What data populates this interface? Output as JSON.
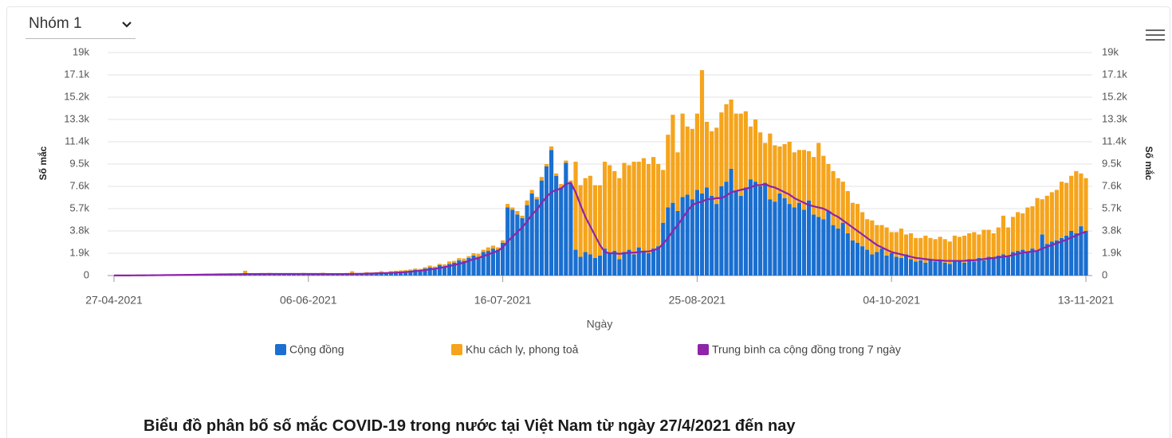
{
  "dropdown": "Nhóm 1",
  "caption": "Biểu đồ phân bố số mắc COVID-19 trong nước tại Việt Nam từ ngày 27/4/2021 đến nay",
  "chart_data": {
    "type": "bar",
    "stacked": true,
    "xlabel": "Ngày",
    "ylabel": "Số mắc",
    "y2label": "Số mắc",
    "grid": true,
    "ylim": [
      0,
      19000
    ],
    "yticks": [
      0,
      {
        "value": 1900,
        "label": "1.9k"
      },
      {
        "value": 3800,
        "label": "3.8k"
      },
      {
        "value": 5700,
        "label": "5.7k"
      },
      {
        "value": 7600,
        "label": "7.6k"
      },
      {
        "value": 9500,
        "label": "9.5k"
      },
      {
        "value": 11400,
        "label": "11.4k"
      },
      {
        "value": 13300,
        "label": "13.3k"
      },
      {
        "value": 15200,
        "label": "15.2k"
      },
      {
        "value": 17100,
        "label": "17.1k"
      },
      {
        "value": 19000,
        "label": "19k"
      }
    ],
    "y2lim": [
      0,
      19000
    ],
    "y2ticks": [
      0,
      {
        "value": 1900,
        "label": "1.9k"
      },
      {
        "value": 3800,
        "label": "3.8k"
      },
      {
        "value": 5700,
        "label": "5.7k"
      },
      {
        "value": 7600,
        "label": "7.6k"
      },
      {
        "value": 9500,
        "label": "9.5k"
      },
      {
        "value": 11400,
        "label": "11.4k"
      },
      {
        "value": 13300,
        "label": "13.3k"
      },
      {
        "value": 15200,
        "label": "15.2k"
      },
      {
        "value": 17100,
        "label": "17.1k"
      },
      {
        "value": 19000,
        "label": "19k"
      }
    ],
    "categories": [
      "27-04-2021",
      null,
      null,
      null,
      null,
      null,
      null,
      null,
      null,
      null,
      null,
      null,
      null,
      null,
      null,
      null,
      null,
      null,
      null,
      null,
      null,
      null,
      null,
      null,
      null,
      null,
      null,
      null,
      null,
      null,
      null,
      null,
      null,
      null,
      null,
      null,
      null,
      null,
      null,
      null,
      "06-06-2021",
      null,
      null,
      null,
      null,
      null,
      null,
      null,
      null,
      null,
      null,
      null,
      null,
      null,
      null,
      null,
      null,
      null,
      null,
      null,
      null,
      null,
      null,
      null,
      null,
      null,
      null,
      null,
      null,
      null,
      null,
      null,
      null,
      null,
      null,
      null,
      null,
      null,
      null,
      null,
      "16-07-2021",
      null,
      null,
      null,
      null,
      null,
      null,
      null,
      null,
      null,
      null,
      null,
      null,
      null,
      null,
      null,
      null,
      null,
      null,
      null,
      null,
      null,
      null,
      null,
      null,
      null,
      null,
      null,
      null,
      null,
      null,
      null,
      null,
      null,
      null,
      null,
      null,
      null,
      null,
      null,
      "25-08-2021",
      null,
      null,
      null,
      null,
      null,
      null,
      null,
      null,
      null,
      null,
      null,
      null,
      null,
      null,
      null,
      null,
      null,
      null,
      null,
      null,
      null,
      null,
      null,
      null,
      null,
      null,
      null,
      null,
      null,
      null,
      null,
      null,
      null,
      null,
      null,
      null,
      null,
      null,
      null,
      "04-10-2021",
      null,
      null,
      null,
      null,
      null,
      null,
      null,
      null,
      null,
      null,
      null,
      null,
      null,
      null,
      null,
      null,
      null,
      null,
      null,
      null,
      null,
      null,
      null,
      null,
      null,
      null,
      null,
      null,
      null,
      null,
      null,
      null,
      null,
      null,
      null,
      null,
      null,
      null,
      null,
      "13-11-2021"
    ],
    "series": [
      {
        "name": "Cộng đồng",
        "color": "#1a6fd0",
        "values": [
          2,
          1,
          0,
          3,
          5,
          8,
          10,
          12,
          25,
          30,
          40,
          35,
          60,
          45,
          80,
          50,
          70,
          90,
          110,
          60,
          80,
          100,
          120,
          90,
          150,
          110,
          130,
          160,
          120,
          140,
          100,
          150,
          180,
          130,
          110,
          160,
          140,
          120,
          100,
          150,
          120,
          140,
          130,
          150,
          110,
          100,
          140,
          120,
          130,
          160,
          150,
          170,
          200,
          180,
          220,
          250,
          200,
          300,
          260,
          350,
          380,
          420,
          500,
          450,
          600,
          700,
          650,
          900,
          800,
          1000,
          1100,
          1300,
          1250,
          1500,
          1700,
          1600,
          2000,
          2100,
          2300,
          2200,
          2800,
          5800,
          5600,
          5200,
          4900,
          6000,
          7000,
          6500,
          8100,
          9300,
          10700,
          8500,
          7500,
          9600,
          7800,
          2200,
          1600,
          2000,
          1800,
          1500,
          1700,
          2300,
          1900,
          2100,
          1400,
          2000,
          2200,
          1800,
          2400,
          2000,
          1900,
          2300,
          2500,
          4500,
          5800,
          6200,
          5500,
          6700,
          6900,
          6500,
          7300,
          7000,
          7500,
          6800,
          6100,
          7600,
          8000,
          9100,
          7200,
          6800,
          7500,
          8200,
          8000,
          7600,
          7900,
          6500,
          6300,
          7000,
          6600,
          6100,
          5800,
          6200,
          5600,
          6400,
          5200,
          5000,
          4800,
          5500,
          4300,
          4000,
          4500,
          3600,
          3000,
          2800,
          2500,
          2200,
          1800,
          2000,
          2300,
          1700,
          1900,
          1600,
          1500,
          1800,
          1400,
          1200,
          1300,
          1100,
          1400,
          1200,
          1300,
          1100,
          1000,
          1200,
          1300,
          1100,
          1400,
          1200,
          1500,
          1300,
          1600,
          1500,
          1700,
          1800,
          1600,
          2000,
          2100,
          2200,
          2000,
          2300,
          2100,
          3500,
          2700,
          2900,
          3000,
          3200,
          3400,
          3800,
          3600,
          4200,
          3800
        ]
      },
      {
        "name": "Khu cách ly, phong toả",
        "color": "#f5a41c",
        "values": [
          3,
          2,
          2,
          4,
          6,
          5,
          8,
          10,
          12,
          10,
          15,
          12,
          20,
          15,
          25,
          20,
          30,
          20,
          25,
          30,
          20,
          30,
          25,
          40,
          30,
          60,
          35,
          250,
          40,
          30,
          60,
          50,
          40,
          30,
          50,
          40,
          60,
          30,
          40,
          70,
          50,
          60,
          40,
          80,
          50,
          40,
          60,
          70,
          80,
          200,
          60,
          50,
          90,
          80,
          70,
          120,
          100,
          80,
          150,
          90,
          80,
          100,
          90,
          120,
          100,
          150,
          120,
          100,
          150,
          200,
          150,
          180,
          200,
          150,
          200,
          250,
          200,
          300,
          250,
          200,
          200,
          300,
          200,
          300,
          200,
          400,
          300,
          200,
          300,
          200,
          300,
          200,
          300,
          200,
          300,
          7500,
          6100,
          6300,
          6700,
          6200,
          6000,
          7400,
          7500,
          6800,
          6900,
          7600,
          7200,
          7900,
          7300,
          8000,
          7600,
          7800,
          7000,
          4500,
          6200,
          7500,
          5000,
          7100,
          5800,
          6000,
          6500,
          10500,
          5600,
          5500,
          6500,
          6300,
          6600,
          5900,
          6600,
          7000,
          6500,
          4500,
          5300,
          4600,
          3400,
          5600,
          4800,
          4000,
          4600,
          5300,
          4700,
          4500,
          5100,
          4200,
          4900,
          6300,
          5400,
          4000,
          4600,
          4300,
          3500,
          3600,
          3200,
          3300,
          2900,
          2600,
          2900,
          2300,
          2000,
          2400,
          1800,
          2100,
          2500,
          1700,
          2200,
          2000,
          1900,
          2300,
          1800,
          1900,
          2000,
          2000,
          1900,
          2200,
          2000,
          2300,
          2200,
          2500,
          2000,
          2600,
          2300,
          2100,
          2400,
          3300,
          2500,
          3000,
          3300,
          3100,
          3800,
          3600,
          4500,
          3000,
          4100,
          4200,
          4300,
          4800,
          4500,
          4700,
          5300,
          4500,
          4500
        ]
      },
      {
        "name": "Trung bình ca cộng đồng trong 7 ngày",
        "color": "#8e24aa",
        "type": "line",
        "values": [
          10,
          10,
          10,
          10,
          12,
          15,
          18,
          20,
          25,
          30,
          35,
          40,
          45,
          50,
          55,
          60,
          65,
          70,
          80,
          85,
          90,
          95,
          100,
          105,
          110,
          115,
          120,
          125,
          130,
          130,
          135,
          135,
          140,
          140,
          140,
          140,
          140,
          140,
          140,
          140,
          135,
          135,
          135,
          135,
          130,
          130,
          130,
          130,
          135,
          140,
          145,
          150,
          160,
          170,
          185,
          200,
          210,
          230,
          250,
          270,
          300,
          330,
          370,
          410,
          460,
          520,
          580,
          640,
          720,
          800,
          900,
          1000,
          1100,
          1250,
          1400,
          1500,
          1650,
          1800,
          1950,
          2100,
          2400,
          2900,
          3300,
          3700,
          4100,
          4600,
          5200,
          5600,
          6200,
          6700,
          7100,
          7300,
          7400,
          7800,
          7900,
          7100,
          6000,
          5000,
          4200,
          3400,
          2600,
          2000,
          1900,
          1900,
          1850,
          1900,
          1950,
          1950,
          2000,
          2050,
          2050,
          2150,
          2300,
          2700,
          3200,
          3800,
          4300,
          4900,
          5500,
          6000,
          6200,
          6300,
          6500,
          6500,
          6600,
          6600,
          6800,
          7100,
          7200,
          7300,
          7400,
          7500,
          7700,
          7700,
          7800,
          7600,
          7500,
          7300,
          7100,
          6900,
          6600,
          6400,
          6200,
          6000,
          5900,
          5800,
          5700,
          5500,
          5200,
          5000,
          4700,
          4400,
          4100,
          3800,
          3500,
          3200,
          2900,
          2600,
          2400,
          2200,
          2000,
          1900,
          1800,
          1700,
          1600,
          1500,
          1450,
          1400,
          1350,
          1300,
          1300,
          1250,
          1250,
          1250,
          1250,
          1250,
          1300,
          1300,
          1350,
          1400,
          1450,
          1500,
          1550,
          1600,
          1650,
          1750,
          1850,
          1950,
          2000,
          2050,
          2100,
          2300,
          2450,
          2600,
          2750,
          2900,
          3050,
          3250,
          3400,
          3600,
          3700
        ]
      }
    ]
  }
}
